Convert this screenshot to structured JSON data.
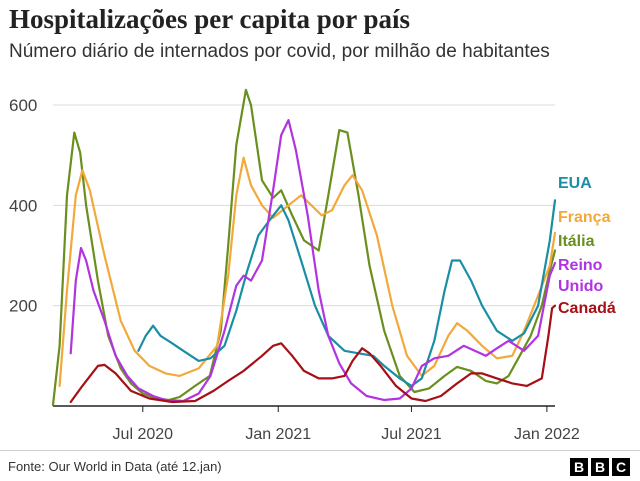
{
  "title": "Hospitalizações per capita por país",
  "subtitle": "Número diário de internados por covid, por milhão de habitantes",
  "source": "Fonte: Our World in Data (até 12.jan)",
  "brand": [
    "B",
    "B",
    "C"
  ],
  "chart_data": {
    "type": "line",
    "title": "Hospitalizações per capita por país",
    "ylim": [
      0,
      600
    ],
    "yticks": [
      200,
      400,
      600
    ],
    "x_ticks": [
      {
        "date": "2020-07-01",
        "label": "Jul 2020"
      },
      {
        "date": "2021-01-01",
        "label": "Jan 2021"
      },
      {
        "date": "2021-07-01",
        "label": "Jul 2021"
      },
      {
        "date": "2022-01-01",
        "label": "Jan 2022"
      }
    ],
    "xlim": [
      "2020-03-01",
      "2022-01-12"
    ],
    "grid": true,
    "legend": "direct labels at right end of lines",
    "series": [
      {
        "name": "Itália",
        "color": "#6a8f1e",
        "points": [
          [
            "2020-03-01",
            2
          ],
          [
            "2020-03-10",
            120
          ],
          [
            "2020-03-20",
            420
          ],
          [
            "2020-03-30",
            545
          ],
          [
            "2020-04-07",
            505
          ],
          [
            "2020-04-15",
            400
          ],
          [
            "2020-05-01",
            250
          ],
          [
            "2020-05-15",
            140
          ],
          [
            "2020-06-01",
            75
          ],
          [
            "2020-06-15",
            45
          ],
          [
            "2020-07-01",
            25
          ],
          [
            "2020-07-20",
            15
          ],
          [
            "2020-08-05",
            12
          ],
          [
            "2020-08-20",
            18
          ],
          [
            "2020-09-10",
            40
          ],
          [
            "2020-09-30",
            60
          ],
          [
            "2020-10-15",
            150
          ],
          [
            "2020-10-25",
            320
          ],
          [
            "2020-11-05",
            520
          ],
          [
            "2020-11-18",
            630
          ],
          [
            "2020-11-25",
            600
          ],
          [
            "2020-12-10",
            450
          ],
          [
            "2020-12-25",
            415
          ],
          [
            "2021-01-05",
            430
          ],
          [
            "2021-01-20",
            380
          ],
          [
            "2021-02-05",
            330
          ],
          [
            "2021-02-25",
            310
          ],
          [
            "2021-03-10",
            420
          ],
          [
            "2021-03-25",
            550
          ],
          [
            "2021-04-05",
            545
          ],
          [
            "2021-04-20",
            420
          ],
          [
            "2021-05-05",
            280
          ],
          [
            "2021-05-25",
            150
          ],
          [
            "2021-06-15",
            60
          ],
          [
            "2021-07-05",
            28
          ],
          [
            "2021-07-25",
            35
          ],
          [
            "2021-08-15",
            60
          ],
          [
            "2021-09-01",
            78
          ],
          [
            "2021-09-20",
            70
          ],
          [
            "2021-10-10",
            50
          ],
          [
            "2021-10-25",
            45
          ],
          [
            "2021-11-10",
            60
          ],
          [
            "2021-11-25",
            100
          ],
          [
            "2021-12-10",
            140
          ],
          [
            "2021-12-25",
            200
          ],
          [
            "2022-01-05",
            270
          ],
          [
            "2022-01-12",
            310
          ]
        ]
      },
      {
        "name": "França",
        "color": "#f2a93b",
        "points": [
          [
            "2020-03-10",
            40
          ],
          [
            "2020-03-20",
            230
          ],
          [
            "2020-04-01",
            420
          ],
          [
            "2020-04-10",
            470
          ],
          [
            "2020-04-20",
            430
          ],
          [
            "2020-05-10",
            300
          ],
          [
            "2020-06-01",
            170
          ],
          [
            "2020-06-20",
            110
          ],
          [
            "2020-07-10",
            80
          ],
          [
            "2020-08-01",
            65
          ],
          [
            "2020-08-20",
            60
          ],
          [
            "2020-09-15",
            75
          ],
          [
            "2020-10-10",
            120
          ],
          [
            "2020-10-25",
            260
          ],
          [
            "2020-11-05",
            420
          ],
          [
            "2020-11-15",
            495
          ],
          [
            "2020-11-25",
            440
          ],
          [
            "2020-12-10",
            400
          ],
          [
            "2020-12-25",
            375
          ],
          [
            "2021-01-15",
            400
          ],
          [
            "2021-02-01",
            420
          ],
          [
            "2021-02-15",
            400
          ],
          [
            "2021-03-01",
            380
          ],
          [
            "2021-03-15",
            390
          ],
          [
            "2021-04-01",
            440
          ],
          [
            "2021-04-12",
            460
          ],
          [
            "2021-04-25",
            430
          ],
          [
            "2021-05-15",
            340
          ],
          [
            "2021-06-05",
            200
          ],
          [
            "2021-06-25",
            100
          ],
          [
            "2021-07-15",
            60
          ],
          [
            "2021-08-01",
            80
          ],
          [
            "2021-08-20",
            140
          ],
          [
            "2021-09-01",
            165
          ],
          [
            "2021-09-15",
            150
          ],
          [
            "2021-10-05",
            120
          ],
          [
            "2021-10-25",
            95
          ],
          [
            "2021-11-15",
            100
          ],
          [
            "2021-12-01",
            150
          ],
          [
            "2021-12-20",
            220
          ],
          [
            "2022-01-05",
            280
          ],
          [
            "2022-01-12",
            345
          ]
        ]
      },
      {
        "name": "EUA",
        "color": "#1a8ea5",
        "points": [
          [
            "2020-06-25",
            110
          ],
          [
            "2020-07-05",
            140
          ],
          [
            "2020-07-15",
            160
          ],
          [
            "2020-07-25",
            140
          ],
          [
            "2020-08-10",
            125
          ],
          [
            "2020-08-25",
            110
          ],
          [
            "2020-09-15",
            90
          ],
          [
            "2020-10-01",
            95
          ],
          [
            "2020-10-20",
            120
          ],
          [
            "2020-11-05",
            190
          ],
          [
            "2020-11-20",
            270
          ],
          [
            "2020-12-05",
            340
          ],
          [
            "2020-12-20",
            370
          ],
          [
            "2021-01-05",
            400
          ],
          [
            "2021-01-15",
            370
          ],
          [
            "2021-02-01",
            290
          ],
          [
            "2021-02-20",
            200
          ],
          [
            "2021-03-10",
            140
          ],
          [
            "2021-04-01",
            110
          ],
          [
            "2021-04-20",
            105
          ],
          [
            "2021-05-10",
            100
          ],
          [
            "2021-05-25",
            80
          ],
          [
            "2021-06-15",
            55
          ],
          [
            "2021-07-01",
            40
          ],
          [
            "2021-07-15",
            55
          ],
          [
            "2021-08-01",
            130
          ],
          [
            "2021-08-15",
            230
          ],
          [
            "2021-08-25",
            290
          ],
          [
            "2021-09-05",
            290
          ],
          [
            "2021-09-20",
            250
          ],
          [
            "2021-10-05",
            200
          ],
          [
            "2021-10-25",
            150
          ],
          [
            "2021-11-15",
            130
          ],
          [
            "2021-12-01",
            145
          ],
          [
            "2021-12-20",
            200
          ],
          [
            "2022-01-05",
            330
          ],
          [
            "2022-01-12",
            410
          ]
        ]
      },
      {
        "name": "Reino Unido",
        "color": "#b233e0",
        "points": [
          [
            "2020-03-25",
            105
          ],
          [
            "2020-04-01",
            250
          ],
          [
            "2020-04-08",
            315
          ],
          [
            "2020-04-15",
            290
          ],
          [
            "2020-04-25",
            230
          ],
          [
            "2020-05-10",
            170
          ],
          [
            "2020-05-25",
            100
          ],
          [
            "2020-06-10",
            60
          ],
          [
            "2020-06-25",
            35
          ],
          [
            "2020-07-15",
            20
          ],
          [
            "2020-08-01",
            12
          ],
          [
            "2020-08-25",
            10
          ],
          [
            "2020-09-15",
            25
          ],
          [
            "2020-10-01",
            60
          ],
          [
            "2020-10-20",
            150
          ],
          [
            "2020-11-05",
            240
          ],
          [
            "2020-11-15",
            260
          ],
          [
            "2020-11-25",
            250
          ],
          [
            "2020-12-10",
            290
          ],
          [
            "2020-12-25",
            430
          ],
          [
            "2021-01-05",
            540
          ],
          [
            "2021-01-15",
            570
          ],
          [
            "2021-01-25",
            510
          ],
          [
            "2021-02-10",
            380
          ],
          [
            "2021-02-25",
            230
          ],
          [
            "2021-03-10",
            140
          ],
          [
            "2021-03-25",
            85
          ],
          [
            "2021-04-10",
            45
          ],
          [
            "2021-05-01",
            20
          ],
          [
            "2021-05-25",
            12
          ],
          [
            "2021-06-15",
            15
          ],
          [
            "2021-07-01",
            35
          ],
          [
            "2021-07-15",
            80
          ],
          [
            "2021-08-01",
            95
          ],
          [
            "2021-08-20",
            100
          ],
          [
            "2021-09-10",
            120
          ],
          [
            "2021-09-25",
            110
          ],
          [
            "2021-10-10",
            100
          ],
          [
            "2021-10-25",
            115
          ],
          [
            "2021-11-10",
            130
          ],
          [
            "2021-12-01",
            110
          ],
          [
            "2021-12-20",
            140
          ],
          [
            "2022-01-05",
            260
          ],
          [
            "2022-01-12",
            285
          ]
        ]
      },
      {
        "name": "Canadá",
        "color": "#a50f15",
        "points": [
          [
            "2020-03-25",
            8
          ],
          [
            "2020-04-10",
            40
          ],
          [
            "2020-05-01",
            80
          ],
          [
            "2020-05-10",
            82
          ],
          [
            "2020-05-25",
            65
          ],
          [
            "2020-06-15",
            30
          ],
          [
            "2020-07-10",
            15
          ],
          [
            "2020-08-10",
            8
          ],
          [
            "2020-09-10",
            10
          ],
          [
            "2020-10-05",
            30
          ],
          [
            "2020-10-25",
            50
          ],
          [
            "2020-11-15",
            70
          ],
          [
            "2020-12-10",
            100
          ],
          [
            "2020-12-25",
            120
          ],
          [
            "2021-01-05",
            125
          ],
          [
            "2021-01-20",
            100
          ],
          [
            "2021-02-05",
            70
          ],
          [
            "2021-02-25",
            55
          ],
          [
            "2021-03-15",
            55
          ],
          [
            "2021-04-01",
            60
          ],
          [
            "2021-04-12",
            90
          ],
          [
            "2021-04-25",
            115
          ],
          [
            "2021-05-05",
            105
          ],
          [
            "2021-05-20",
            80
          ],
          [
            "2021-06-10",
            40
          ],
          [
            "2021-07-01",
            15
          ],
          [
            "2021-07-20",
            10
          ],
          [
            "2021-08-10",
            20
          ],
          [
            "2021-09-01",
            45
          ],
          [
            "2021-09-20",
            65
          ],
          [
            "2021-10-05",
            65
          ],
          [
            "2021-10-25",
            55
          ],
          [
            "2021-11-15",
            45
          ],
          [
            "2021-12-05",
            40
          ],
          [
            "2021-12-25",
            55
          ],
          [
            "2022-01-03",
            140
          ],
          [
            "2022-01-08",
            195
          ],
          [
            "2022-01-12",
            200
          ]
        ]
      }
    ]
  },
  "labels": [
    {
      "text": "EUA",
      "color": "#1a8ea5"
    },
    {
      "text": "França",
      "color": "#f2a93b"
    },
    {
      "text": "Itália",
      "color": "#6a8f1e"
    },
    {
      "text": "Reino",
      "color": "#b233e0"
    },
    {
      "text": "Unido",
      "color": "#b233e0"
    },
    {
      "text": "Canadá",
      "color": "#a50f15"
    }
  ]
}
